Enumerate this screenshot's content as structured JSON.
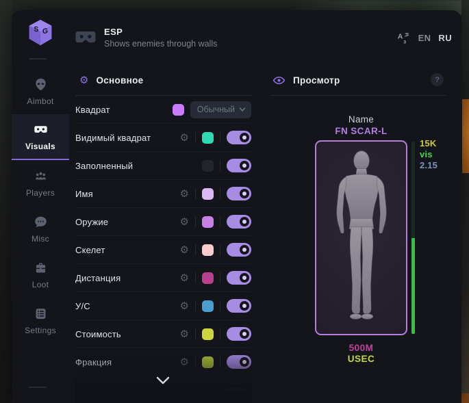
{
  "header": {
    "title": "ESP",
    "subtitle": "Shows enemies through walls",
    "languages": [
      {
        "label": "EN",
        "active": false
      },
      {
        "label": "RU",
        "active": true
      }
    ]
  },
  "sidebar": {
    "items": [
      {
        "id": "aimbot",
        "label": "Aimbot",
        "active": false
      },
      {
        "id": "visuals",
        "label": "Visuals",
        "active": true
      },
      {
        "id": "players",
        "label": "Players",
        "active": false
      },
      {
        "id": "misc",
        "label": "Misc",
        "active": false
      },
      {
        "id": "loot",
        "label": "Loot",
        "active": false
      },
      {
        "id": "settings",
        "label": "Settings",
        "active": false
      }
    ]
  },
  "settings_panel": {
    "title": "Основное",
    "rows": [
      {
        "label": "Квадрат",
        "type": "dropdown",
        "gear": false,
        "swatch": "#c77dfa",
        "dropdown_value": "Обычный"
      },
      {
        "label": "Видимый квадрат",
        "type": "toggle",
        "gear": true,
        "swatch": "#2ed9b4",
        "on": true
      },
      {
        "label": "Заполненный",
        "type": "toggle",
        "gear": false,
        "swatch": "#23242e",
        "on": true
      },
      {
        "label": "Имя",
        "type": "toggle",
        "gear": true,
        "swatch": "#dcb6f5",
        "on": true
      },
      {
        "label": "Оружие",
        "type": "toggle",
        "gear": true,
        "swatch": "#c97fe3",
        "on": true
      },
      {
        "label": "Скелет",
        "type": "toggle",
        "gear": true,
        "swatch": "#fccbd1",
        "on": true
      },
      {
        "label": "Дистанция",
        "type": "toggle",
        "gear": true,
        "swatch": "#b8408f",
        "on": true
      },
      {
        "label": "У/С",
        "type": "toggle",
        "gear": true,
        "swatch": "#4d9ed0",
        "on": true
      },
      {
        "label": "Стоимость",
        "type": "toggle",
        "gear": true,
        "swatch": "#ccd63c",
        "on": true
      },
      {
        "label": "Фракция",
        "type": "toggle",
        "gear": true,
        "swatch": "#aec438",
        "on": true
      }
    ]
  },
  "preview_panel": {
    "title": "Просмотр",
    "help_label": "?",
    "target_name_label": "Name",
    "target_weapon": "FN SCAR-L",
    "stats": [
      {
        "text": "15K",
        "color": "#cfc93e"
      },
      {
        "text": "vis",
        "color": "#3fd84f"
      },
      {
        "text": "2.15",
        "color": "#7d93b8"
      }
    ],
    "health_fill_pct": 50,
    "distance": "500M",
    "distance_color": "#c63fa0",
    "faction": "USEC",
    "faction_color": "#c6d83e"
  }
}
